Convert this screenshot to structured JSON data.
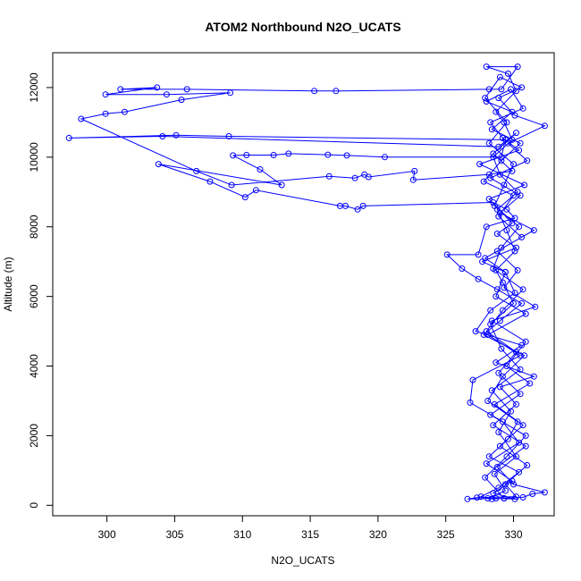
{
  "chart_data": {
    "type": "scatter",
    "title": "ATOM2 Northbound N2O_UCATS",
    "xlabel": "N2O_UCATS",
    "ylabel": "Altitude (m)",
    "xlim": [
      296.0,
      333.0
    ],
    "ylim": [
      -300,
      13000
    ],
    "xticks": [
      300,
      305,
      310,
      315,
      320,
      325,
      330
    ],
    "yticks": [
      0,
      2000,
      4000,
      6000,
      8000,
      10000,
      12000
    ],
    "series_color": "#0000ff",
    "marker": "open-circle",
    "connected": true,
    "series": [
      {
        "points": [
          [
            328.1,
            200
          ],
          [
            329.4,
            420
          ],
          [
            328.6,
            900
          ],
          [
            330.2,
            1400
          ],
          [
            328.9,
            2100
          ],
          [
            329.8,
            2700
          ],
          [
            328.4,
            3300
          ],
          [
            330.5,
            3900
          ],
          [
            329.1,
            4500
          ],
          [
            328.3,
            5200
          ],
          [
            330.0,
            5800
          ],
          [
            329.2,
            6400
          ],
          [
            328.7,
            6750
          ],
          [
            330.1,
            7300
          ],
          [
            329.5,
            7900
          ],
          [
            328.8,
            8500
          ],
          [
            330.3,
            9000
          ],
          [
            329.0,
            9500
          ],
          [
            328.5,
            10000
          ],
          [
            329.9,
            10500
          ],
          [
            329.3,
            11000
          ],
          [
            328.7,
            11300
          ],
          [
            330.2,
            11900
          ],
          [
            329.6,
            12400
          ],
          [
            328.0,
            12600
          ],
          [
            330.3,
            12600
          ],
          [
            329.1,
            11950
          ],
          [
            328.2,
            11950
          ],
          [
            316.9,
            11900
          ],
          [
            315.3,
            11900
          ],
          [
            305.9,
            11950
          ],
          [
            301.0,
            11950
          ],
          [
            303.7,
            12000
          ],
          [
            299.9,
            11800
          ],
          [
            304.4,
            11800
          ],
          [
            309.1,
            11850
          ],
          [
            305.5,
            11650
          ],
          [
            301.3,
            11300
          ],
          [
            299.9,
            11250
          ],
          [
            298.1,
            11100
          ],
          [
            306.6,
            9600
          ],
          [
            309.2,
            9200
          ],
          [
            316.4,
            9450
          ],
          [
            318.3,
            9400
          ],
          [
            319.0,
            9500
          ],
          [
            319.3,
            9430
          ],
          [
            322.7,
            9600
          ],
          [
            322.6,
            9350
          ],
          [
            328.2,
            9500
          ],
          [
            329.9,
            9600
          ],
          [
            328.5,
            10100
          ],
          [
            330.2,
            10700
          ],
          [
            328.9,
            10300
          ],
          [
            304.1,
            10600
          ],
          [
            297.2,
            10550
          ],
          [
            305.1,
            10630
          ],
          [
            309.0,
            10600
          ],
          [
            329.4,
            10500
          ],
          [
            329.1,
            10000
          ],
          [
            320.5,
            10000
          ],
          [
            317.7,
            10050
          ],
          [
            316.3,
            10070
          ],
          [
            313.4,
            10100
          ],
          [
            312.3,
            10060
          ],
          [
            310.3,
            10060
          ],
          [
            309.3,
            10050
          ],
          [
            311.3,
            9650
          ],
          [
            312.9,
            9200
          ],
          [
            303.8,
            9800
          ],
          [
            307.6,
            9300
          ],
          [
            310.2,
            8850
          ],
          [
            311.0,
            9050
          ],
          [
            317.2,
            8600
          ],
          [
            317.6,
            8600
          ],
          [
            318.5,
            8500
          ],
          [
            318.9,
            8600
          ],
          [
            328.5,
            8700
          ],
          [
            329.5,
            8500
          ],
          [
            330.1,
            8250
          ],
          [
            328.0,
            8000
          ],
          [
            327.4,
            7200
          ],
          [
            325.1,
            7200
          ],
          [
            326.2,
            6800
          ],
          [
            327.4,
            6500
          ],
          [
            328.8,
            6200
          ],
          [
            330.6,
            5800
          ],
          [
            329.0,
            5300
          ],
          [
            327.8,
            4900
          ],
          [
            330.8,
            4300
          ],
          [
            329.2,
            3700
          ],
          [
            328.1,
            3000
          ],
          [
            330.3,
            2400
          ],
          [
            329.6,
            1900
          ],
          [
            328.2,
            1400
          ],
          [
            330.4,
            950
          ],
          [
            328.9,
            500
          ],
          [
            327.6,
            250
          ],
          [
            328.4,
            180
          ],
          [
            329.3,
            200
          ],
          [
            330.7,
            230
          ],
          [
            331.4,
            330
          ],
          [
            332.3,
            370
          ],
          [
            330.0,
            600
          ],
          [
            328.8,
            1100
          ],
          [
            330.9,
            1700
          ],
          [
            328.5,
            2300
          ],
          [
            330.2,
            2900
          ],
          [
            329.0,
            3400
          ],
          [
            331.5,
            3700
          ],
          [
            328.7,
            4100
          ],
          [
            330.6,
            4600
          ],
          [
            327.2,
            5000
          ],
          [
            328.3,
            5600
          ],
          [
            330.1,
            6100
          ],
          [
            329.4,
            6700
          ],
          [
            327.7,
            7000
          ],
          [
            330.2,
            7400
          ],
          [
            328.8,
            7800
          ],
          [
            329.9,
            8100
          ],
          [
            328.2,
            8800
          ],
          [
            330.8,
            9200
          ],
          [
            327.5,
            9800
          ],
          [
            330.4,
            10200
          ],
          [
            329.2,
            10550
          ],
          [
            328.3,
            11000
          ],
          [
            330.7,
            11400
          ],
          [
            329.8,
            11950
          ],
          [
            328.0,
            11600
          ],
          [
            329.9,
            11300
          ],
          [
            328.4,
            10800
          ],
          [
            330.5,
            10400
          ],
          [
            329.1,
            9900
          ],
          [
            327.8,
            9300
          ],
          [
            330.0,
            8900
          ],
          [
            328.9,
            8300
          ],
          [
            330.6,
            7700
          ],
          [
            327.9,
            7100
          ],
          [
            329.4,
            6700
          ],
          [
            328.7,
            6000
          ],
          [
            330.9,
            5500
          ],
          [
            328.1,
            4900
          ],
          [
            330.5,
            4300
          ],
          [
            327.0,
            3600
          ],
          [
            326.8,
            2950
          ],
          [
            329.2,
            2400
          ],
          [
            330.4,
            1800
          ],
          [
            328.0,
            1200
          ],
          [
            329.9,
            700
          ],
          [
            328.5,
            350
          ],
          [
            330.1,
            180
          ],
          [
            328.7,
            200
          ],
          [
            326.6,
            180
          ],
          [
            327.3,
            220
          ],
          [
            330.2,
            250
          ],
          [
            329.4,
            600
          ],
          [
            331.0,
            1150
          ],
          [
            329.0,
            1700
          ],
          [
            330.7,
            2300
          ],
          [
            328.6,
            2900
          ],
          [
            331.2,
            3500
          ],
          [
            329.5,
            4000
          ],
          [
            330.9,
            4700
          ],
          [
            328.4,
            5300
          ],
          [
            331.6,
            5700
          ],
          [
            329.3,
            6250
          ],
          [
            330.3,
            6750
          ],
          [
            328.8,
            7300
          ],
          [
            331.5,
            7900
          ],
          [
            329.0,
            8400
          ],
          [
            330.5,
            8900
          ],
          [
            328.3,
            9400
          ],
          [
            331.0,
            9900
          ],
          [
            329.6,
            10400
          ],
          [
            332.3,
            10900
          ],
          [
            330.1,
            11200
          ],
          [
            328.9,
            11700
          ],
          [
            330.6,
            12000
          ],
          [
            329.0,
            12300
          ],
          [
            327.9,
            11700
          ],
          [
            329.5,
            11000
          ],
          [
            328.2,
            10400
          ],
          [
            330.0,
            9800
          ],
          [
            329.3,
            9200
          ],
          [
            328.6,
            8600
          ],
          [
            330.4,
            8000
          ],
          [
            329.1,
            7400
          ],
          [
            328.5,
            6800
          ],
          [
            330.7,
            6200
          ],
          [
            329.2,
            5600
          ],
          [
            328.0,
            5000
          ],
          [
            330.2,
            4400
          ],
          [
            328.9,
            3800
          ],
          [
            330.5,
            3200
          ],
          [
            328.3,
            2600
          ],
          [
            330.9,
            2000
          ],
          [
            329.5,
            1400
          ],
          [
            327.9,
            800
          ],
          [
            329.3,
            200
          ]
        ]
      }
    ]
  }
}
